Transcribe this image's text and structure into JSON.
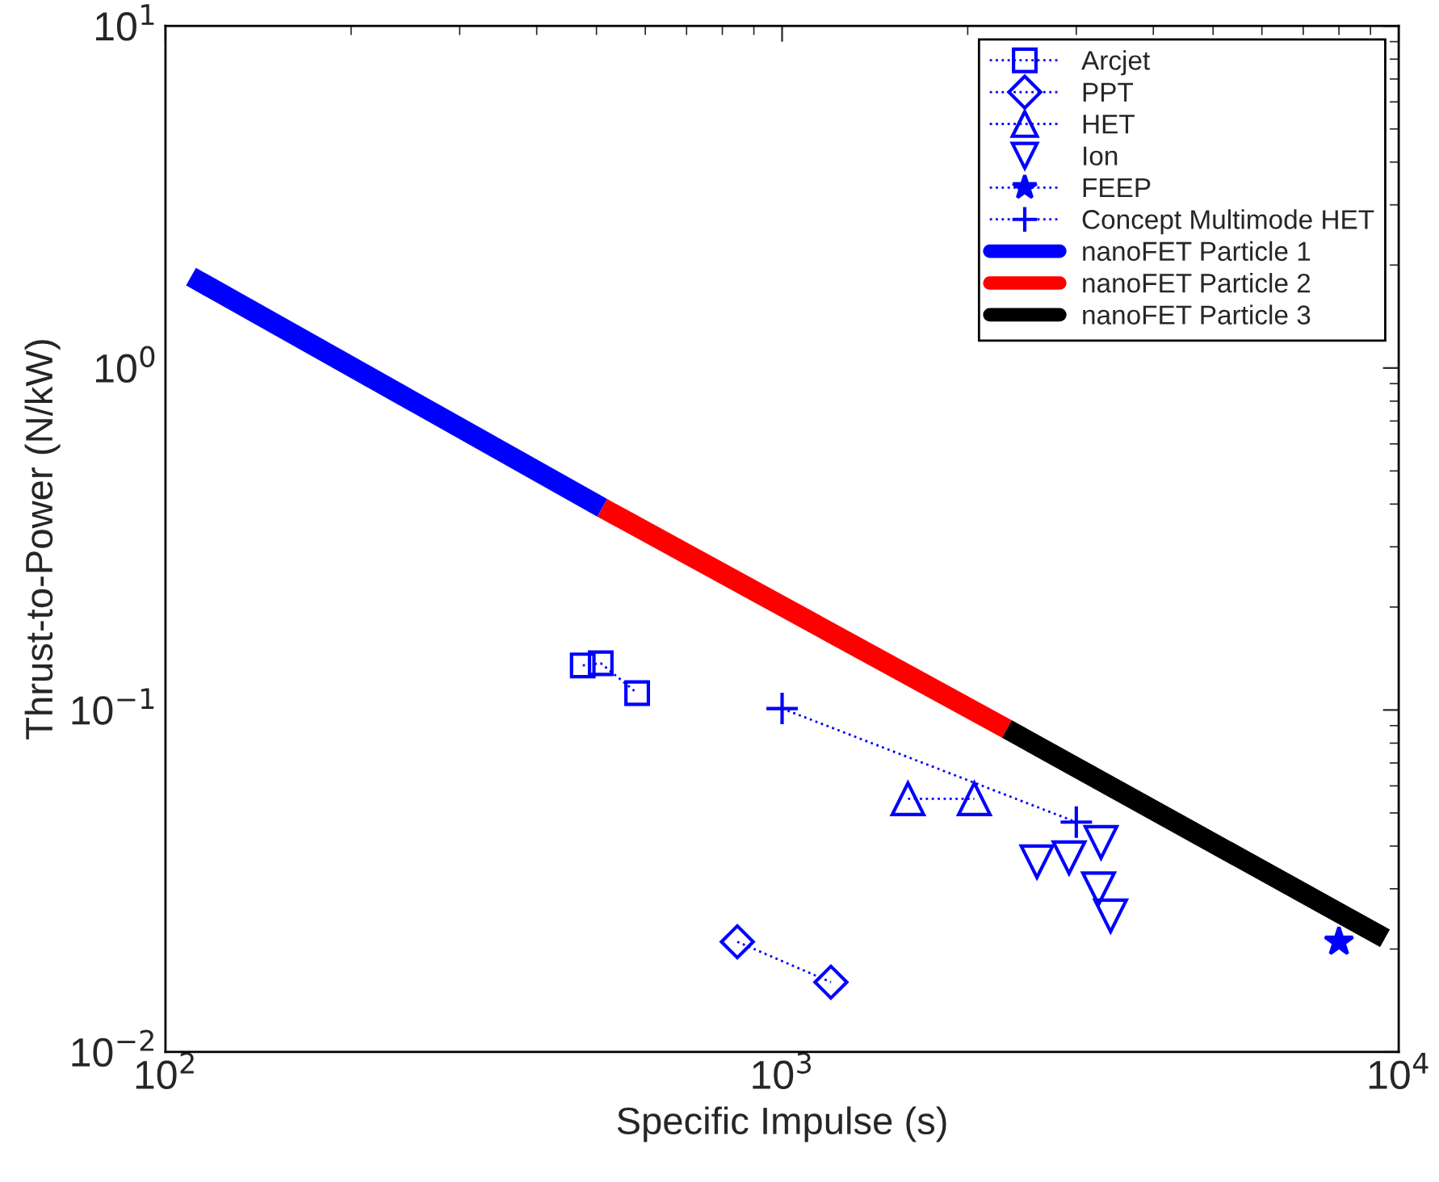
{
  "chart_data": {
    "type": "line",
    "xlabel": "Specific Impulse (s)",
    "ylabel": "Thrust-to-Power (N/kW)",
    "log": "xy",
    "grid": false,
    "legend": "top right",
    "xlim": [
      100,
      10000
    ],
    "ylim": [
      0.01,
      10
    ],
    "xticks": [
      {
        "value": 100,
        "label": "10$^{2}$"
      },
      {
        "value": 1000,
        "label": "10$^{3}$"
      },
      {
        "value": 10000,
        "label": "10$^{4}$"
      }
    ],
    "yticks": [
      {
        "value": 0.01,
        "label": "10$^{−2}$"
      },
      {
        "value": 0.1,
        "label": "10$^{−1}$"
      },
      {
        "value": 1,
        "label": "10$^{0}$"
      },
      {
        "value": 10,
        "label": "10$^{1}$"
      }
    ],
    "series": [
      {
        "name": "Arcjet",
        "color": "#0000ff",
        "marker": "square",
        "line_style": "dotted",
        "x": [
          475,
          508,
          582
        ],
        "values": [
          0.135,
          0.137,
          0.112
        ]
      },
      {
        "name": "PPT",
        "color": "#0000ff",
        "marker": "diamond",
        "line_style": "dotted",
        "x": [
          846,
          1200
        ],
        "values": [
          0.021,
          0.016
        ]
      },
      {
        "name": "HET",
        "color": "#0000ff",
        "marker": "triangle",
        "line_style": "dotted",
        "x": [
          1600,
          2050
        ],
        "values": [
          0.055,
          0.055
        ]
      },
      {
        "name": "Ion",
        "type": "scatter",
        "color": "#0000ff",
        "marker": "triangle_down",
        "x": [
          3290,
          2590,
          2920,
          3260,
          3410
        ],
        "values": [
          0.041,
          0.036,
          0.037,
          0.03,
          0.025
        ]
      },
      {
        "name": "FEEP",
        "color": "#0000ff",
        "marker": "star",
        "line_style": "dotted",
        "x": [
          8000
        ],
        "values": [
          0.021
        ]
      },
      {
        "name": "Concept Multimode HET",
        "color": "#0000ff",
        "marker": "cross",
        "line_style": "dotted",
        "x": [
          1000,
          3000
        ],
        "values": [
          0.101,
          0.047
        ]
      },
      {
        "name": "nanoFET Particle 1",
        "color": "#0000ff",
        "marker": "none",
        "line_style": "solid",
        "x": [
          110,
          511
        ],
        "values": [
          1.85,
          0.39
        ]
      },
      {
        "name": "nanoFET Particle 2",
        "color": "#ff0000",
        "marker": "none",
        "line_style": "solid",
        "x": [
          511,
          2315
        ],
        "values": [
          0.39,
          0.088
        ]
      },
      {
        "name": "nanoFET Particle 3",
        "color": "#000000",
        "marker": "none",
        "line_style": "solid",
        "x": [
          2315,
          9500
        ],
        "values": [
          0.088,
          0.0215
        ]
      }
    ]
  }
}
